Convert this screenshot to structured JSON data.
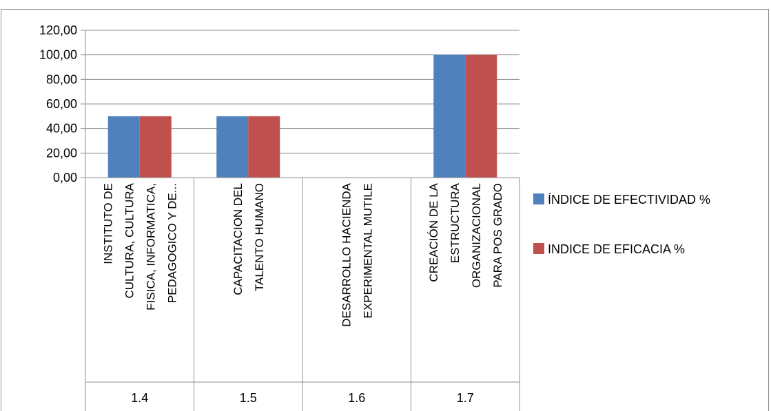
{
  "chart_data": {
    "type": "bar",
    "categories": [
      {
        "code": "1.4",
        "lines": [
          "INSTITUTO DE",
          "CULTURA, CULTURA",
          "FISICA, INFORMATICA,",
          "PEDAGOGICO Y DE..."
        ]
      },
      {
        "code": "1.5",
        "lines": [
          "CAPACITACION DEL",
          "TALENTO HUMANO"
        ]
      },
      {
        "code": "1.6",
        "lines": [
          "DESARROLLO HACIENDA",
          "EXPERIMENTAL MUTILE"
        ]
      },
      {
        "code": "1.7",
        "lines": [
          "CREACIÓN DE LA",
          "ESTRUCTURA",
          "ORGANIZACIONAL",
          "PARA POS GRADO"
        ]
      }
    ],
    "series": [
      {
        "name": "ÍNDICE DE EFECTIVIDAD %",
        "color": "#4f81bd",
        "values": [
          50,
          50,
          0,
          100
        ]
      },
      {
        "name": "INDICE DE EFICACIA %",
        "color": "#c0504d",
        "values": [
          50,
          50,
          0,
          100
        ]
      }
    ],
    "ylim": [
      0,
      120
    ],
    "yticks": [
      "0,00",
      "20,00",
      "40,00",
      "60,00",
      "80,00",
      "100,00",
      "120,00"
    ],
    "legend_position": "right",
    "grid": true
  }
}
